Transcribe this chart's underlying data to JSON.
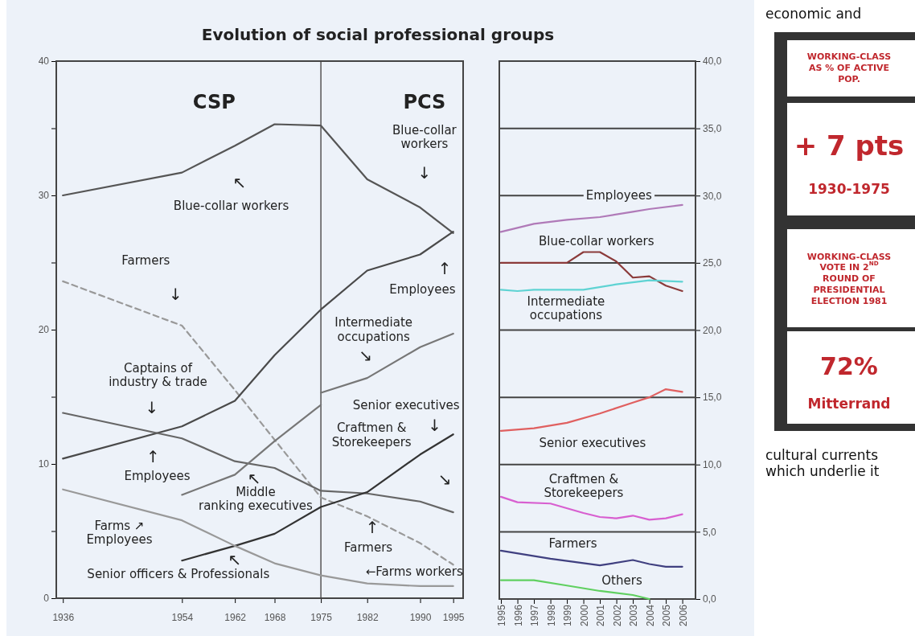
{
  "chart_data": [
    {
      "type": "line",
      "title": "Evolution of social professional groups",
      "xlim": [
        1935,
        1996.5
      ],
      "ylim": [
        0,
        40
      ],
      "xticks": [
        1936,
        1954,
        1962,
        1968,
        1975,
        1982,
        1990,
        1995
      ],
      "yticks": [
        0,
        {
          "value": 5,
          "label": null
        },
        10,
        {
          "value": 15,
          "label": null
        },
        20,
        {
          "value": 25,
          "label": null
        },
        30,
        {
          "value": 35,
          "label": null
        },
        40
      ],
      "grid": false,
      "ref_lines": [
        {
          "axis": "x",
          "value": 1975,
          "color": "#555555"
        }
      ],
      "series": [
        {
          "color": "#555555",
          "x": [
            1936,
            1954,
            1962,
            1968,
            1975,
            1982,
            1990,
            1995
          ],
          "values": [
            30.0,
            31.7,
            33.7,
            35.3,
            35.2,
            31.2,
            29.1,
            27.2
          ]
        },
        {
          "color": "#999999",
          "line_style": "dashed",
          "x": [
            1936,
            1954,
            1962,
            1968,
            1975,
            1982,
            1990,
            1995
          ],
          "values": [
            23.6,
            20.3,
            15.5,
            11.8,
            7.5,
            6.1,
            4.1,
            2.5
          ]
        },
        {
          "color": "#4a4a4a",
          "x": [
            1936,
            1954,
            1962,
            1968,
            1975,
            1982,
            1990,
            1995
          ],
          "values": [
            10.4,
            12.8,
            14.7,
            18.1,
            21.5,
            24.4,
            25.6,
            27.3
          ]
        },
        {
          "color": "#666666",
          "x": [
            1936,
            1954,
            1962,
            1968,
            1975,
            1982,
            1990,
            1995
          ],
          "values": [
            13.8,
            11.9,
            10.2,
            9.7,
            8.0,
            7.8,
            7.2,
            6.4
          ]
        },
        {
          "color": "#777777",
          "x": [
            1954,
            1962,
            1968,
            1975
          ],
          "values": [
            7.7,
            9.2,
            11.7,
            14.4
          ]
        },
        {
          "color": "#777777",
          "x": [
            1975,
            1982,
            1990,
            1995
          ],
          "values": [
            15.3,
            16.4,
            18.7,
            19.7
          ]
        },
        {
          "color": "#333333",
          "x": [
            1954,
            1962,
            1968,
            1975,
            1982,
            1990,
            1995
          ],
          "values": [
            2.8,
            3.9,
            4.8,
            6.8,
            7.9,
            10.7,
            12.2
          ]
        },
        {
          "color": "#999999",
          "x": [
            1936,
            1954,
            1962,
            1968,
            1975,
            1982,
            1990,
            1995
          ],
          "values": [
            8.1,
            5.8,
            3.9,
            2.6,
            1.7,
            1.1,
            0.9,
            0.9
          ]
        }
      ],
      "annotations": [
        "CSP",
        "PCS",
        "Blue-collar workers",
        "↖",
        "Blue-collar\nworkers",
        "↓",
        "Farmers",
        "↓",
        "↑",
        "Employees",
        "Intermediate\noccupations",
        "↘",
        "Captains of\nindustry & trade",
        "↓",
        "↑",
        "Employees",
        "↖",
        "Middle\nranking executives",
        "Senior executives",
        "↓",
        "Craftmen &\nStorekeepers",
        "↘",
        "Farms  ↗\nEmployees",
        "↑",
        "Farmers",
        "↖",
        "Senior officers & Professionals",
        "←Farms workers"
      ]
    },
    {
      "type": "line",
      "xlim": [
        1994.9,
        2006.8
      ],
      "ylim": [
        0,
        40
      ],
      "xticks": [
        1995,
        1996,
        1997,
        1998,
        1999,
        2000,
        2001,
        2002,
        2003,
        2004,
        2005,
        2006
      ],
      "yticks": [
        {
          "value": 0,
          "label": "0,0"
        },
        {
          "value": 5,
          "label": "5,0"
        },
        {
          "value": 10,
          "label": "10,0"
        },
        {
          "value": 15,
          "label": "15,0"
        },
        {
          "value": 20,
          "label": "20,0"
        },
        {
          "value": 25,
          "label": "25,0"
        },
        {
          "value": 30,
          "label": "30,0"
        },
        {
          "value": 35,
          "label": "35,0"
        },
        {
          "value": 40,
          "label": "40,0"
        }
      ],
      "grid": "y",
      "series": [
        {
          "color": "#b07ab8",
          "x": [
            1995,
            1997,
            1999,
            2001,
            2003,
            2004,
            2006
          ],
          "values": [
            27.3,
            27.9,
            28.2,
            28.4,
            28.8,
            29.0,
            29.3
          ]
        },
        {
          "color": "#8b3a3a",
          "x": [
            1995,
            1999,
            2000,
            2001,
            2002,
            2003,
            2004,
            2005,
            2006
          ],
          "values": [
            25.0,
            25.0,
            25.8,
            25.8,
            25.1,
            23.9,
            24.0,
            23.3,
            22.9
          ]
        },
        {
          "color": "#5fd3d3",
          "x": [
            1995,
            1996,
            1997,
            2000,
            2002,
            2004,
            2006
          ],
          "values": [
            23.0,
            22.9,
            23.0,
            23.0,
            23.4,
            23.7,
            23.6
          ]
        },
        {
          "color": "#e06060",
          "x": [
            1995,
            1997,
            1999,
            2001,
            2003,
            2004,
            2005,
            2006
          ],
          "values": [
            12.5,
            12.7,
            13.1,
            13.8,
            14.6,
            15.0,
            15.6,
            15.4
          ]
        },
        {
          "color": "#d85fd0",
          "x": [
            1995,
            1996,
            1998,
            2000,
            2001,
            2002,
            2003,
            2004,
            2005,
            2006
          ],
          "values": [
            7.6,
            7.2,
            7.1,
            6.4,
            6.1,
            6.0,
            6.2,
            5.9,
            6.0,
            6.3
          ]
        },
        {
          "color": "#404080",
          "x": [
            1995,
            1998,
            2001,
            2003,
            2004,
            2005,
            2006
          ],
          "values": [
            3.6,
            3.0,
            2.5,
            2.9,
            2.6,
            2.4,
            2.4
          ]
        },
        {
          "color": "#60d060",
          "x": [
            1995,
            1997,
            1999,
            2001,
            2003,
            2004
          ],
          "values": [
            1.4,
            1.4,
            1.0,
            0.6,
            0.3,
            0.0
          ]
        }
      ],
      "annotations": [
        "Employees",
        "Blue-collar workers",
        "Intermediate\noccupations",
        "Senior executives",
        "Craftmen &\nStorekeepers",
        "Farmers",
        "Others"
      ]
    },
    {
      "type": "other",
      "annotations": [
        "economic and",
        "WORKING-CLASS\nAS % OF ACTIVE\nPOP.",
        "+ 7 pts",
        "1930-1975",
        "WORKING-CLASS\nVOTE IN 2$^{ND}$\nROUND OF\nPRESIDENTIAL\nELECTION  1981",
        "72%",
        "Mitterrand",
        "cultural currents\nwhich underlie it"
      ]
    }
  ]
}
